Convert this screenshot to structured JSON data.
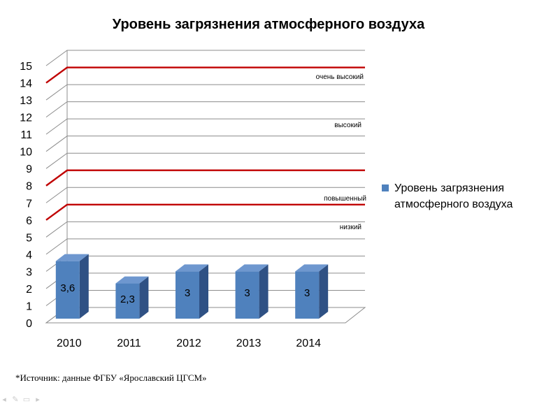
{
  "chart_data": {
    "type": "bar",
    "title": "Уровень загрязнения атмосферного воздуха",
    "categories": [
      "2010",
      "2011",
      "2012",
      "2013",
      "2014"
    ],
    "series": [
      {
        "name": "Уровень загрязнения атмосферного воздуха",
        "values": [
          3.6,
          2.3,
          3,
          3,
          3
        ],
        "labels": [
          "3,6",
          "2,3",
          "3",
          "3",
          "3"
        ],
        "color": "#4f81bd"
      }
    ],
    "ylim": [
      0,
      15
    ],
    "yticks": [
      "0",
      "1",
      "2",
      "3",
      "4",
      "5",
      "6",
      "7",
      "8",
      "9",
      "10",
      "11",
      "12",
      "13",
      "14",
      "15"
    ],
    "grid": true,
    "legend_position": "right",
    "reference_lines": [
      {
        "label": "очень высокий",
        "value": 14,
        "color": "#c00000"
      },
      {
        "label": "высокий",
        "value": null,
        "color": null
      },
      {
        "label": "повышенный",
        "value": 8,
        "color": "#c00000"
      },
      {
        "label": "низкий",
        "value": 6,
        "color": "#c00000"
      }
    ]
  },
  "source_note": "*Источник: данные ФГБУ «Ярославский ЦГСМ»",
  "toolbar": {
    "icons": [
      "prev-arrow-icon",
      "pen-icon",
      "menu-icon",
      "next-arrow-icon"
    ],
    "glyphs": [
      "◂",
      "✎",
      "▭",
      "▸"
    ]
  }
}
